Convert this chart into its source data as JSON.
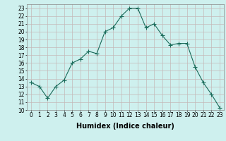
{
  "x": [
    0,
    1,
    2,
    3,
    4,
    5,
    6,
    7,
    8,
    9,
    10,
    11,
    12,
    13,
    14,
    15,
    16,
    17,
    18,
    19,
    20,
    21,
    22,
    23
  ],
  "y": [
    13.5,
    13.0,
    11.5,
    13.0,
    13.8,
    16.0,
    16.5,
    17.5,
    17.2,
    20.0,
    20.5,
    22.0,
    23.0,
    23.0,
    20.5,
    21.0,
    19.5,
    18.3,
    18.5,
    18.5,
    15.5,
    13.5,
    12.0,
    10.3
  ],
  "line_color": "#1a6b5a",
  "marker": "+",
  "marker_size": 4,
  "bg_color": "#cef0ee",
  "grid_color": "#c4b8b8",
  "xlabel": "Humidex (Indice chaleur)",
  "xlim": [
    -0.5,
    23.5
  ],
  "ylim": [
    10,
    23.5
  ],
  "yticks": [
    10,
    11,
    12,
    13,
    14,
    15,
    16,
    17,
    18,
    19,
    20,
    21,
    22,
    23
  ],
  "xticks": [
    0,
    1,
    2,
    3,
    4,
    5,
    6,
    7,
    8,
    9,
    10,
    11,
    12,
    13,
    14,
    15,
    16,
    17,
    18,
    19,
    20,
    21,
    22,
    23
  ],
  "tick_fontsize": 5.5,
  "label_fontsize": 7
}
